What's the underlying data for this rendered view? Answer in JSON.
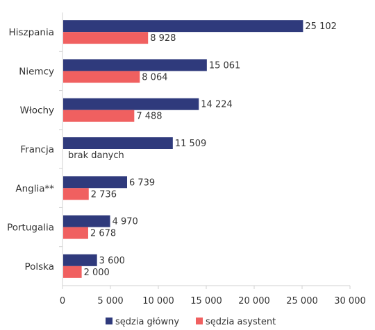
{
  "chart_data": {
    "type": "bar",
    "orientation": "horizontal",
    "title": "",
    "xlabel": "",
    "ylabel": "",
    "xlim": [
      0,
      30000
    ],
    "x_ticks": [
      0,
      5000,
      10000,
      15000,
      20000,
      25000,
      30000
    ],
    "x_tick_labels": [
      "0",
      "5 000",
      "10 000",
      "15 000",
      "20 000",
      "25 000",
      "30 000"
    ],
    "grid": false,
    "legend_position": "bottom",
    "categories": [
      "Hiszpania",
      "Niemcy",
      "Włochy",
      "Francja",
      "Anglia**",
      "Portugalia",
      "Polska"
    ],
    "series": [
      {
        "name": "sędzia główny",
        "color": "#2f3a7c",
        "values": [
          25102,
          15061,
          14224,
          11509,
          6739,
          4970,
          3600
        ],
        "labels": [
          "25 102",
          "15 061",
          "14 224",
          "11 509",
          "6 739",
          "4 970",
          "3 600"
        ]
      },
      {
        "name": "sędzia asystent",
        "color": "#f06060",
        "values": [
          8928,
          8064,
          7488,
          null,
          2736,
          2678,
          2000
        ],
        "labels": [
          "8 928",
          "8 064",
          "7 488",
          "brak danych",
          "2 736",
          "2 678",
          "2 000"
        ]
      }
    ]
  }
}
